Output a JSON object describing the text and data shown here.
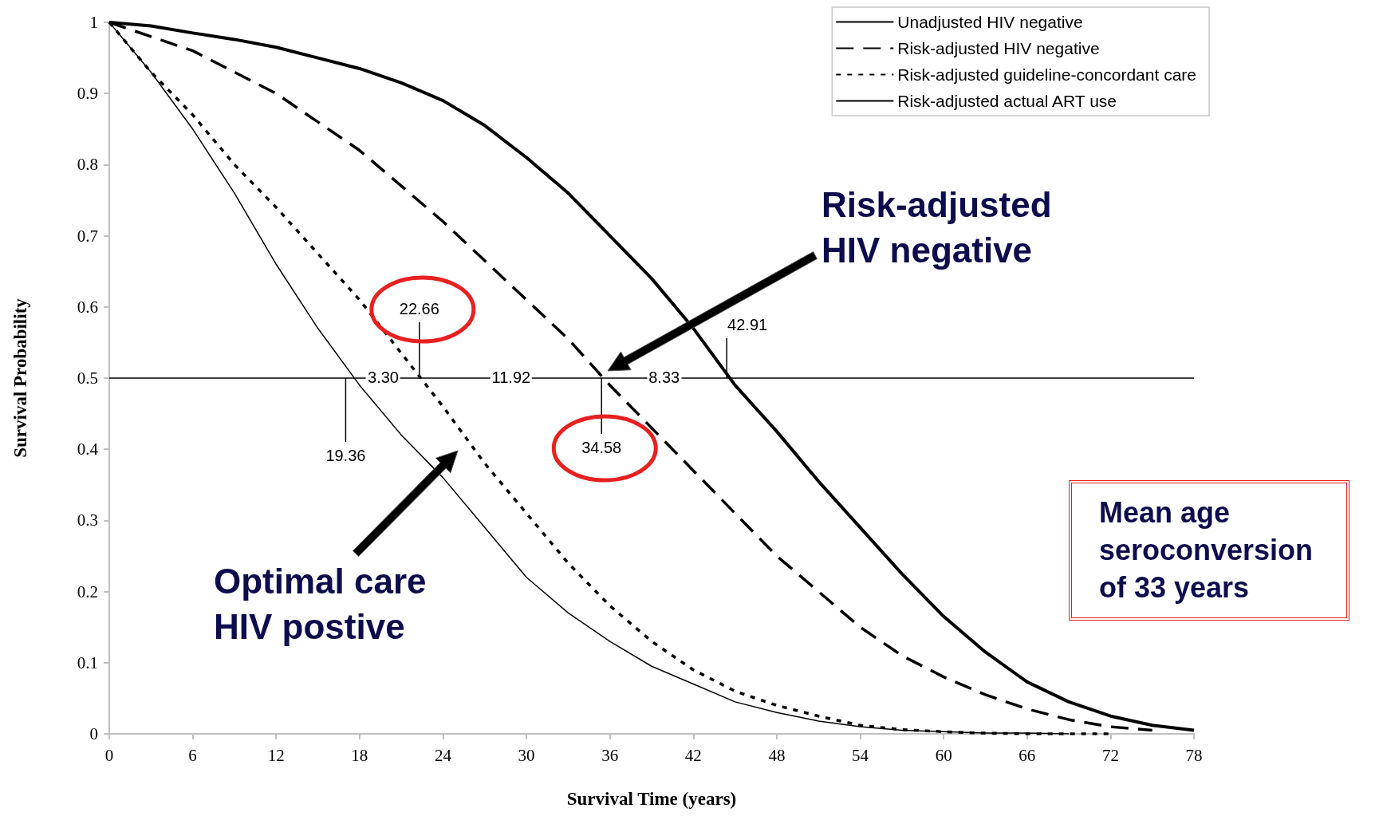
{
  "chart_data": {
    "type": "line",
    "xlabel": "Survival Time (years)",
    "ylabel": "Survival Probability",
    "xlim": [
      0,
      78
    ],
    "xticks": [
      0,
      6,
      12,
      18,
      24,
      30,
      36,
      42,
      48,
      54,
      60,
      66,
      72,
      78
    ],
    "ylim": [
      0,
      1
    ],
    "yticks": [
      0,
      0.1,
      0.2,
      0.3,
      0.4,
      0.5,
      0.6,
      0.7,
      0.8,
      0.9,
      1
    ],
    "grid": false,
    "legend": "top right",
    "marker": "none",
    "x": [
      0,
      3,
      6,
      9,
      12,
      15,
      18,
      21,
      24,
      27,
      30,
      33,
      36,
      39,
      42,
      45,
      48,
      51,
      54,
      57,
      60,
      63,
      66,
      69,
      72,
      75,
      78
    ],
    "series": [
      {
        "name": "Unadjusted HIV negative",
        "color": "#000000",
        "line_style": "solid",
        "values": [
          1,
          0.995,
          0.985,
          0.976,
          0.965,
          0.95,
          0.935,
          0.915,
          0.89,
          0.855,
          0.81,
          0.76,
          0.7,
          0.64,
          0.57,
          0.49,
          0.425,
          0.355,
          0.29,
          0.225,
          0.165,
          0.115,
          0.073,
          0.045,
          0.025,
          0.012,
          0.005
        ]
      },
      {
        "name": "Risk-adjusted HIV negative",
        "color": "#000000",
        "line_style": "dashed",
        "x": [
          0,
          3,
          6,
          9,
          12,
          15,
          18,
          21,
          24,
          27,
          30,
          33,
          36,
          39,
          42,
          45,
          48,
          51,
          54,
          57,
          60,
          63,
          66,
          69,
          72,
          75
        ],
        "values": [
          1,
          0.98,
          0.96,
          0.93,
          0.9,
          0.86,
          0.82,
          0.77,
          0.72,
          0.665,
          0.61,
          0.555,
          0.49,
          0.43,
          0.37,
          0.31,
          0.25,
          0.2,
          0.15,
          0.11,
          0.08,
          0.055,
          0.035,
          0.02,
          0.01,
          0.005
        ]
      },
      {
        "name": "Risk-adjusted guideline-concordant care",
        "color": "#000000",
        "line_style": "dotted",
        "x": [
          0,
          3,
          6,
          9,
          12,
          15,
          18,
          21,
          24,
          27,
          30,
          33,
          36,
          39,
          42,
          45,
          48,
          51,
          54,
          57,
          60,
          63,
          66,
          69,
          72
        ],
        "values": [
          1,
          0.93,
          0.87,
          0.8,
          0.74,
          0.675,
          0.61,
          0.535,
          0.46,
          0.38,
          0.31,
          0.24,
          0.18,
          0.13,
          0.09,
          0.06,
          0.04,
          0.025,
          0.012,
          0.006,
          0.003,
          0.001,
          0,
          0,
          0
        ]
      },
      {
        "name": "Risk-adjusted actual ART use",
        "color": "#000000",
        "line_style": "solid",
        "x": [
          0,
          3,
          6,
          9,
          12,
          15,
          18,
          21,
          24,
          27,
          30,
          33,
          36,
          39,
          42,
          45,
          48,
          51,
          54,
          57,
          60,
          63,
          66,
          69
        ],
        "values": [
          1,
          0.93,
          0.85,
          0.76,
          0.66,
          0.57,
          0.49,
          0.42,
          0.36,
          0.29,
          0.22,
          0.17,
          0.13,
          0.095,
          0.07,
          0.045,
          0.03,
          0.018,
          0.01,
          0.005,
          0.003,
          0.001,
          0.001,
          0
        ]
      }
    ],
    "ref_lines": [
      {
        "axis": "y",
        "value": 0.5,
        "color": "#000000"
      }
    ],
    "annotations": [
      {
        "text": "19.36",
        "x": 17,
        "y": 0.5
      },
      {
        "text": "22.66",
        "x": 22.3,
        "y": 0.5
      },
      {
        "text": "34.58",
        "x": 35.4,
        "y": 0.5
      },
      {
        "text": "42.91",
        "x": 44.4,
        "y": 0.5
      },
      {
        "text": "3.30",
        "x": 19.7,
        "y": 0.5
      },
      {
        "text": "11.92",
        "x": 28.9,
        "y": 0.5
      },
      {
        "text": "8.33",
        "x": 39.9,
        "y": 0.5
      },
      "Risk-adjusted HIV negative",
      "Optimal care HIV postive",
      "Mean age seroconversion of 33 years"
    ]
  }
}
